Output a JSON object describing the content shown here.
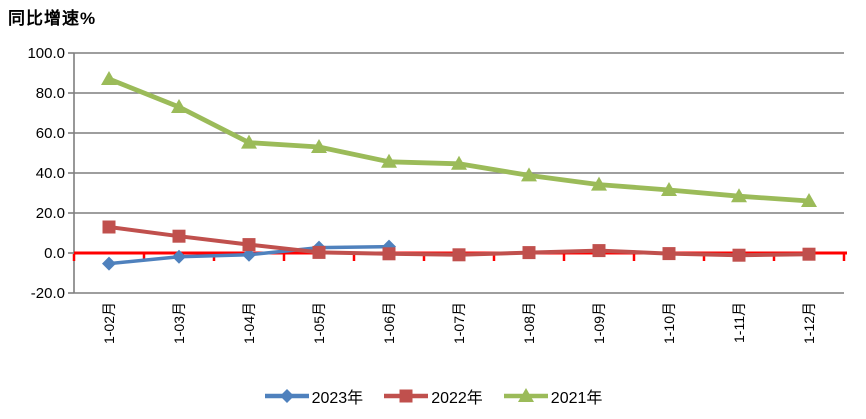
{
  "chart_data": {
    "type": "line",
    "title": "同比增速%",
    "categories": [
      "1-02月",
      "1-03月",
      "1-04月",
      "1-05月",
      "1-06月",
      "1-07月",
      "1-08月",
      "1-09月",
      "1-10月",
      "1-11月",
      "1-12月"
    ],
    "series": [
      {
        "name": "2023年",
        "color": "#4F81BD",
        "marker": "diamond",
        "values": [
          -5.3,
          -1.9,
          -0.9,
          2.7,
          3.2,
          null,
          null,
          null,
          null,
          null,
          null
        ]
      },
      {
        "name": "2022年",
        "color": "#C0504D",
        "marker": "square",
        "values": [
          13.0,
          8.4,
          4.2,
          0.3,
          -0.4,
          -0.9,
          0.2,
          1.2,
          -0.3,
          -1.1,
          -0.6
        ]
      },
      {
        "name": "2021年",
        "color": "#9BBB59",
        "marker": "triangle",
        "values": [
          87.0,
          73.0,
          55.2,
          53.0,
          45.6,
          44.6,
          38.8,
          34.2,
          31.5,
          28.4,
          26.0
        ]
      }
    ],
    "y_axis": {
      "min": -20,
      "max": 100,
      "step": 20,
      "ticks": [
        {
          "value": 100,
          "label": "100.0"
        },
        {
          "value": 80,
          "label": "80.0"
        },
        {
          "value": 60,
          "label": "60.0"
        },
        {
          "value": 40,
          "label": "40.0"
        },
        {
          "value": 20,
          "label": "20.0"
        },
        {
          "value": 0,
          "label": "0.0"
        },
        {
          "value": -20,
          "label": "-20.0"
        }
      ]
    },
    "x_axis": {
      "crosses_at": 0,
      "color": "#FF0000"
    },
    "gridline_color": "#7F7F7F",
    "axis_line_color": "#7F7F7F",
    "text_color": "#000000",
    "legend_position": "bottom"
  }
}
